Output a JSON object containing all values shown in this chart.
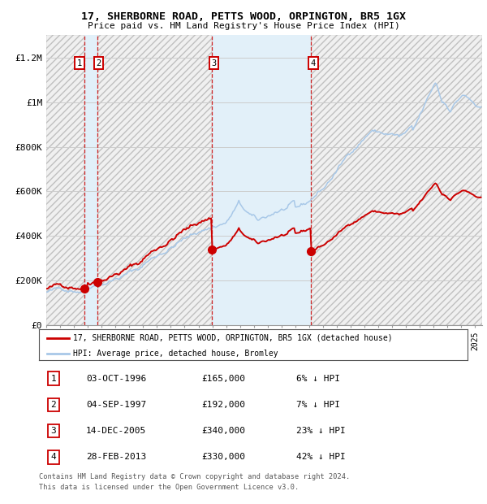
{
  "title1": "17, SHERBORNE ROAD, PETTS WOOD, ORPINGTON, BR5 1GX",
  "title2": "Price paid vs. HM Land Registry's House Price Index (HPI)",
  "ylim": [
    0,
    1300000
  ],
  "yticks": [
    0,
    200000,
    400000,
    600000,
    800000,
    1000000,
    1200000
  ],
  "ytick_labels": [
    "£0",
    "£200K",
    "£400K",
    "£600K",
    "£800K",
    "£1M",
    "£1.2M"
  ],
  "hpi_color": "#a8c8e8",
  "price_color": "#cc0000",
  "transactions": [
    {
      "num": 1,
      "date": "03-OCT-1996",
      "year": 1996.75,
      "price": 165000,
      "pct": "6%"
    },
    {
      "num": 2,
      "date": "04-SEP-1997",
      "year": 1997.67,
      "price": 192000,
      "pct": "7%"
    },
    {
      "num": 3,
      "date": "14-DEC-2005",
      "year": 2005.95,
      "price": 340000,
      "pct": "23%"
    },
    {
      "num": 4,
      "date": "28-FEB-2013",
      "year": 2013.15,
      "price": 330000,
      "pct": "42%"
    }
  ],
  "legend_line1": "17, SHERBORNE ROAD, PETTS WOOD, ORPINGTON, BR5 1GX (detached house)",
  "legend_line2": "HPI: Average price, detached house, Bromley",
  "footnote1": "Contains HM Land Registry data © Crown copyright and database right 2024.",
  "footnote2": "This data is licensed under the Open Government Licence v3.0.",
  "xmin": 1994.0,
  "xmax": 2025.5,
  "table_rows": [
    [
      1,
      "03-OCT-1996",
      "£165,000",
      "6% ↓ HPI"
    ],
    [
      2,
      "04-SEP-1997",
      "£192,000",
      "7% ↓ HPI"
    ],
    [
      3,
      "14-DEC-2005",
      "£340,000",
      "23% ↓ HPI"
    ],
    [
      4,
      "28-FEB-2013",
      "£330,000",
      "42% ↓ HPI"
    ]
  ]
}
